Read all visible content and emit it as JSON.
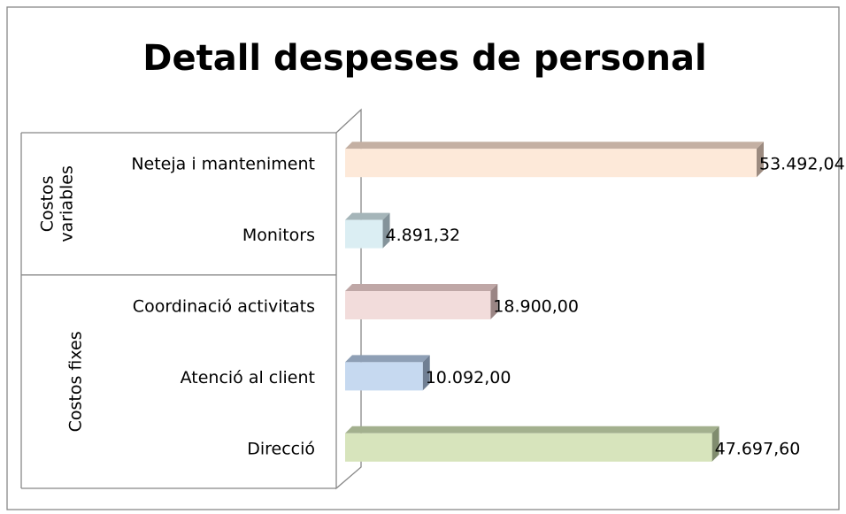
{
  "chart_data": {
    "type": "bar3d-horizontal",
    "title": "Detall despeses de personal",
    "categories": [
      "Neteja i manteniment",
      "Monitors",
      "Coordinació activitats",
      "Atenció al client",
      "Direcció"
    ],
    "groups": [
      {
        "name": "Costos variables",
        "size": 2
      },
      {
        "name": "Costos fixes",
        "size": 3
      }
    ],
    "values": [
      53492.04,
      4891.32,
      18900,
      10092,
      47697.6
    ],
    "value_labels": [
      "53.492,04",
      "4.891,32",
      "18.900,00",
      "10.092,00",
      "47.697,60"
    ],
    "colors": [
      "#fde9d9",
      "#dbeef3",
      "#f2dcdb",
      "#c6d9f0",
      "#d7e4bc"
    ],
    "top_colors": [
      "#c4b0a3",
      "#a5b5b9",
      "#bfa7a6",
      "#8e9fb5",
      "#a3b08e"
    ],
    "side_colors": [
      "#9c8b80",
      "#84939a",
      "#9a8584",
      "#707f93",
      "#808c6e"
    ]
  }
}
